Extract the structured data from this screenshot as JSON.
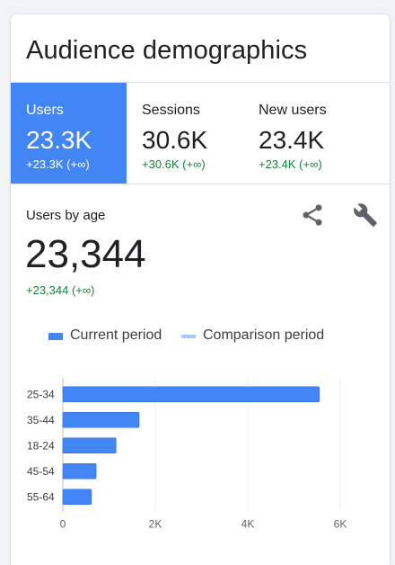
{
  "card": {
    "title": "Audience demographics"
  },
  "tabs": [
    {
      "label": "Users",
      "value": "23.3K",
      "change": "+23.3K (+∞)",
      "active": true
    },
    {
      "label": "Sessions",
      "value": "30.6K",
      "change": "+30.6K (+∞)",
      "active": false
    },
    {
      "label": "New users",
      "value": "23.4K",
      "change": "+23.4K (+∞)",
      "active": false
    }
  ],
  "section": {
    "label": "Users by age",
    "total": "23,344",
    "change": "+23,344 (+∞)"
  },
  "icons": {
    "share": "share-icon",
    "customize": "wrench-icon"
  },
  "legend": {
    "current": "Current period",
    "comparison": "Comparison period",
    "current_color": "#4285f4",
    "comparison_color": "#a6c8ff"
  },
  "chart_data": {
    "type": "bar",
    "orientation": "horizontal",
    "categories": [
      "25-34",
      "35-44",
      "18-24",
      "45-54",
      "55-64"
    ],
    "series": [
      {
        "name": "Current period",
        "values": [
          5550,
          1650,
          1150,
          720,
          620
        ]
      }
    ],
    "x_ticks": [
      "0",
      "2K",
      "4K",
      "6K"
    ],
    "xlim": [
      0,
      6000
    ],
    "grid": true,
    "legend_position": "top"
  },
  "colors": {
    "accent": "#4285f4",
    "positive": "#188038"
  }
}
